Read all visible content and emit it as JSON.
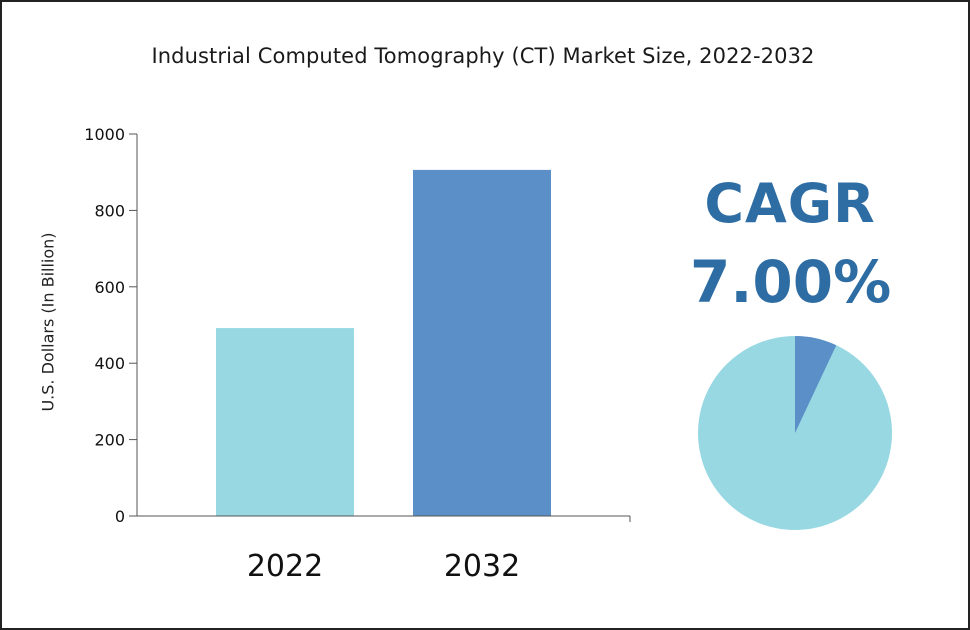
{
  "chart_data": {
    "type": "bar",
    "title": "Industrial Computed Tomography (CT) Market Size, 2022-2032",
    "xlabel": "",
    "ylabel": "U.S. Dollars (In Billion)",
    "categories": [
      "2022",
      "2032"
    ],
    "values": [
      492,
      906
    ],
    "ylim": [
      0,
      1000
    ],
    "yticks": [
      0,
      200,
      400,
      600,
      800,
      1000
    ],
    "grid": false,
    "colors": [
      "#98d8e3",
      "#5b8fc7"
    ]
  },
  "cagr": {
    "label": "CAGR",
    "value": "7.00%",
    "fraction": 0.07,
    "text_color": "#2e6da4",
    "pie_colors": {
      "slice": "#5b8fc7",
      "rest": "#98d8e3"
    }
  }
}
